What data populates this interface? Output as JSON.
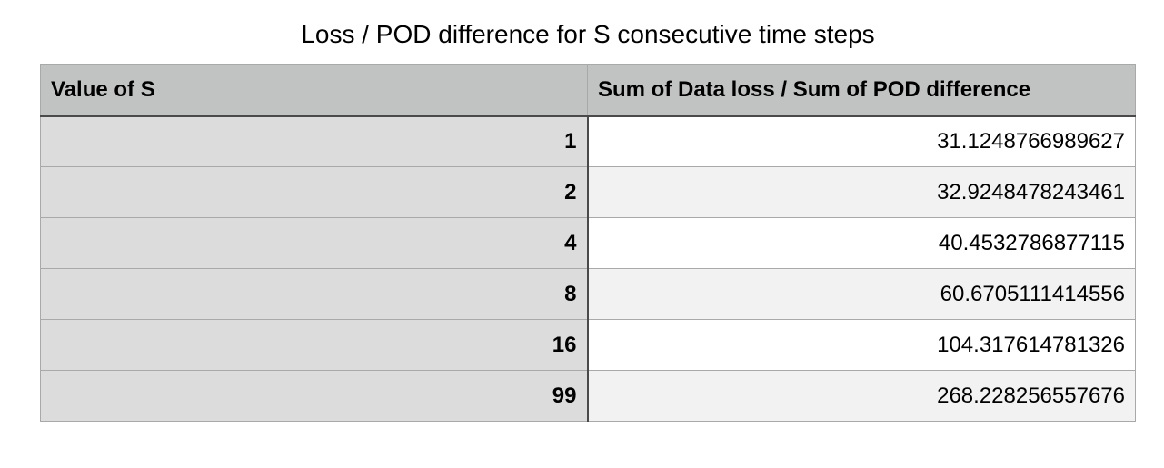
{
  "chart_data": {
    "type": "table",
    "title": "Loss / POD difference for S consecutive time steps",
    "columns": [
      "Value of S",
      "Sum of Data loss / Sum of POD difference"
    ],
    "rows": [
      [
        "1",
        "31.1248766989627"
      ],
      [
        "2",
        "32.9248478243461"
      ],
      [
        "4",
        "40.4532786877115"
      ],
      [
        "8",
        "60.6705111414556"
      ],
      [
        "16",
        "104.317614781326"
      ],
      [
        "99",
        "268.228256557676"
      ]
    ]
  },
  "colors": {
    "header_bg": "#c1c2c2",
    "first_column_bg": "#dcdcdc",
    "alt_row_bg": "#f2f2f2",
    "border": "#a9a9a9"
  }
}
